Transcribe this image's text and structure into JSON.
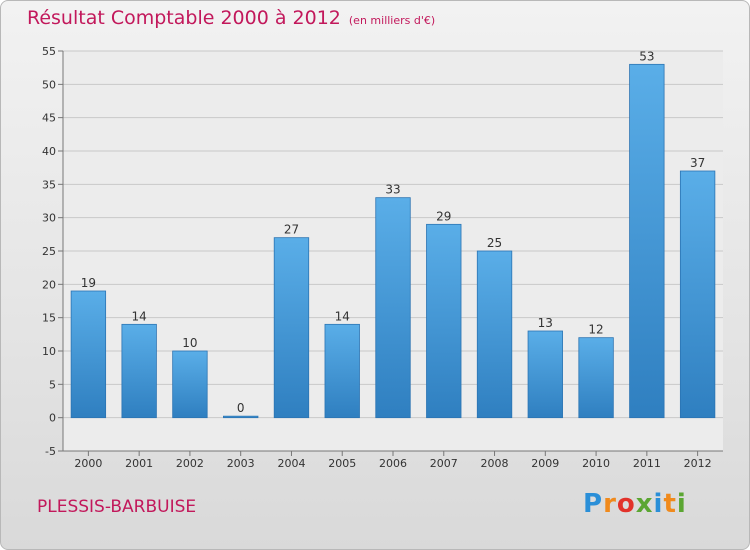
{
  "title": "Résultat Comptable 2000 à 2012",
  "subtitle": "(en milliers d'€)",
  "place": "PLESSIS-BARBUISE",
  "logo": {
    "letters": [
      "P",
      "r",
      "o",
      "x",
      "i",
      "t",
      "i"
    ],
    "colors": [
      "#2a8fd8",
      "#f08a1c",
      "#e2322a",
      "#5ba632",
      "#2a8fd8",
      "#f08a1c",
      "#5ba632"
    ]
  },
  "colors": {
    "bar": "#3f97d6",
    "title": "#c2185b"
  },
  "chart_data": {
    "type": "bar",
    "title": "Résultat Comptable 2000 à 2012",
    "categories": [
      "2000",
      "2001",
      "2002",
      "2003",
      "2004",
      "2005",
      "2006",
      "2007",
      "2008",
      "2009",
      "2010",
      "2011",
      "2012"
    ],
    "values": [
      19,
      14,
      10,
      0,
      27,
      14,
      33,
      29,
      25,
      13,
      12,
      53,
      37
    ],
    "ylim": [
      -5,
      55
    ],
    "yticks": [
      -5,
      0,
      5,
      10,
      15,
      20,
      25,
      30,
      35,
      40,
      45,
      50,
      55
    ],
    "grid": true,
    "data_labels": true
  }
}
